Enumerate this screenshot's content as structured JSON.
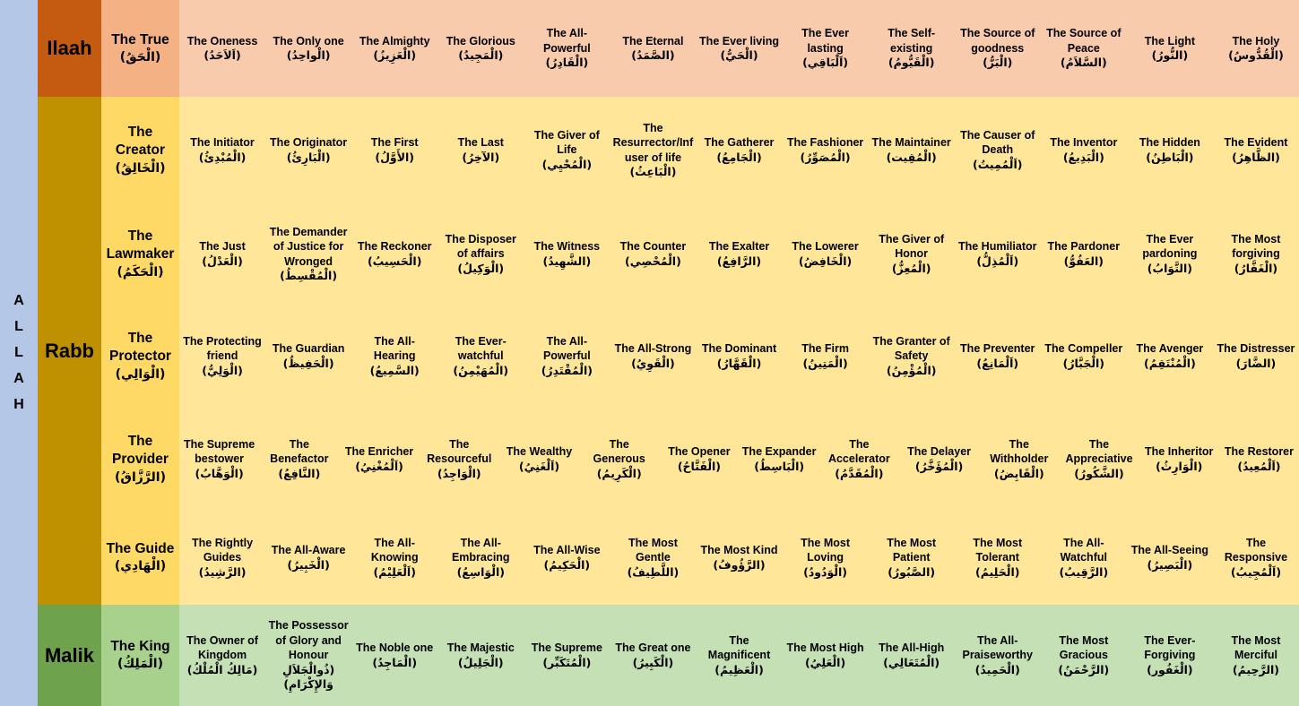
{
  "palette": {
    "allah_strip_bg": "#B4C7E7",
    "text": "#000000"
  },
  "allah_vertical_label": {
    "letters": [
      "A",
      "L",
      "L",
      "A",
      "H"
    ]
  },
  "sections": [
    {
      "category": "Ilaah",
      "colors": {
        "category_bg": "#C55A11",
        "label_bg": "#F4B183",
        "names_bg": "#F8CBAD"
      },
      "rows": [
        {
          "label": {
            "name": "The True",
            "arabic": "(الْحَقُ)"
          },
          "names": [
            {
              "name": "The Oneness",
              "arabic": "(اَلاَحَدُ)"
            },
            {
              "name": "The Only one",
              "arabic": "(الْواحِدُ)"
            },
            {
              "name": "The Almighty",
              "arabic": "(الْعَزِيزُ)"
            },
            {
              "name": "The Glorious",
              "arabic": "(الْمَجِيدُ)"
            },
            {
              "name": "The All-Powerful",
              "arabic": "(الْقَادِرُ)"
            },
            {
              "name": "The Eternal",
              "arabic": "(الصَّمَدُ)"
            },
            {
              "name": "The Ever living",
              "arabic": "(الْحَيُّ)"
            },
            {
              "name": "The Ever lasting",
              "arabic": "(اَلْبَاقِي)"
            },
            {
              "name": "The Self-existing",
              "arabic": "(الْقَيُّومُ)"
            },
            {
              "name": "The Source of goodness",
              "arabic": "(الْبَرُّ)"
            },
            {
              "name": "The Source of Peace",
              "arabic": "(السَّلاَمُ)"
            },
            {
              "name": "The Light",
              "arabic": "(النُّورُ)"
            },
            {
              "name": "The Holy",
              "arabic": "(الْقُدُّوسُ)"
            }
          ]
        }
      ]
    },
    {
      "category": "Rabb",
      "colors": {
        "category_bg": "#BF9000",
        "label_bg": "#FFD966",
        "names_bg": "#FFE699"
      },
      "rows": [
        {
          "label": {
            "name": "The Creator",
            "arabic": "(الْخَالِقُ)"
          },
          "names": [
            {
              "name": "The Initiator",
              "arabic": "(الْمُبْدِئُ)"
            },
            {
              "name": "The Originator",
              "arabic": "(الْبَارِئُ)"
            },
            {
              "name": "The First",
              "arabic": "(الأَوَّلُ)"
            },
            {
              "name": "The Last",
              "arabic": "(الآخِرُ)"
            },
            {
              "name": "The Giver of Life",
              "arabic": "(الْمُحْيِي)"
            },
            {
              "name": "The Resurrector/Infuser of life",
              "arabic": "(الْبَاعِثُ)"
            },
            {
              "name": "The Gatherer",
              "arabic": "(الْجَامِعُ)"
            },
            {
              "name": "The Fashioner",
              "arabic": "(الْمُصَوِّرُ)"
            },
            {
              "name": "The Maintainer",
              "arabic": "(الْمُقِيت)"
            },
            {
              "name": "The Causer of Death",
              "arabic": "(اَلْمُمِيتُ)"
            },
            {
              "name": "The Inventor",
              "arabic": "(الْبَدِيعُ)"
            },
            {
              "name": "The Hidden",
              "arabic": "(الْبَاطِنُ)"
            },
            {
              "name": "The Evident",
              "arabic": "(الظَّاهِرُ)"
            }
          ]
        },
        {
          "label": {
            "name": "The Lawmaker",
            "arabic": "(الْحَكَمُ)"
          },
          "names": [
            {
              "name": "The Just",
              "arabic": "(الْعَدْلُ)"
            },
            {
              "name": "The Demander of Justice for Wronged",
              "arabic": "(الْمُقْسِطُ)"
            },
            {
              "name": "The Reckoner",
              "arabic": "(الْحَسِيبُ)"
            },
            {
              "name": "The Disposer of affairs",
              "arabic": "(الْوَكِيلُ)"
            },
            {
              "name": "The Witness",
              "arabic": "(الشَّهِيدُ)"
            },
            {
              "name": "The Counter",
              "arabic": "(الْمُحْصِي)"
            },
            {
              "name": "The Exalter",
              "arabic": "(الرَّافِعُ)"
            },
            {
              "name": "The Lowerer",
              "arabic": "(الْخَافِضُ)"
            },
            {
              "name": "The Giver of Honor",
              "arabic": "(الْمُعِزُّ)"
            },
            {
              "name": "The Humiliator",
              "arabic": "(اَلْمُذِلُّ)"
            },
            {
              "name": "The Pardoner",
              "arabic": "(العَفُوُّ)"
            },
            {
              "name": "The Ever pardoning",
              "arabic": "(التَّوَابُ)"
            },
            {
              "name": "The Most forgiving",
              "arabic": "(الْغَفَّارُ)"
            }
          ]
        },
        {
          "label": {
            "name": "The Protector",
            "arabic": "(الْوَالِي)"
          },
          "names": [
            {
              "name": "The Protecting friend",
              "arabic": "(الْوَلِيُّ)"
            },
            {
              "name": "The Guardian",
              "arabic": "(الْحَفِيظُ)"
            },
            {
              "name": "The All-Hearing",
              "arabic": "(السَّمِيعُ)"
            },
            {
              "name": "The Ever-watchful",
              "arabic": "(الْمُهَيْمِنُ)"
            },
            {
              "name": "The All-Powerful",
              "arabic": "(الْمُقْتَدِرُ)"
            },
            {
              "name": "The All-Strong",
              "arabic": "(الْقَوِيُ)"
            },
            {
              "name": "The Dominant",
              "arabic": "(الْقَهَّارُ)"
            },
            {
              "name": "The Firm",
              "arabic": "(الْمَتِينُ)"
            },
            {
              "name": "The Granter of Safety",
              "arabic": "(الْمُؤْمِنُ)"
            },
            {
              "name": "The Preventer",
              "arabic": "(اَلْمَانِعُ)"
            },
            {
              "name": "The Compeller",
              "arabic": "(الْجَبَّارُ)"
            },
            {
              "name": "The Avenger",
              "arabic": "(الْمُنْتَقِمُ)"
            },
            {
              "name": "The Distresser",
              "arabic": "(الضَّارَ)"
            }
          ]
        },
        {
          "label": {
            "name": "The Provider",
            "arabic": "(الرَّزَّاقُ)"
          },
          "names": [
            {
              "name": "The Supreme bestower",
              "arabic": "(الْوَهَّابُ)"
            },
            {
              "name": "The Benefactor",
              "arabic": "(النَّافِعُ)"
            },
            {
              "name": "The Enricher",
              "arabic": "(اَلْمُغْنِيُ)"
            },
            {
              "name": "The Resourceful",
              "arabic": "(الْوَاجِدُ)"
            },
            {
              "name": "The Wealthy",
              "arabic": "(اَلْغَنِيُ)"
            },
            {
              "name": "The Generous",
              "arabic": "(الْكَرِيمُ)"
            },
            {
              "name": "The Opener",
              "arabic": "(الْفَتَّاحُ)"
            },
            {
              "name": "The Expander",
              "arabic": "(الْبَاسِطُ)"
            },
            {
              "name": "The Accelerator",
              "arabic": "(الْمُقَدَّمُ)"
            },
            {
              "name": "The Delayer",
              "arabic": "(الْمُؤَخَّرُ)"
            },
            {
              "name": "The Withholder",
              "arabic": "(الْقَابِضُ)"
            },
            {
              "name": "The Appreciative",
              "arabic": "(الشَّكُورُ)"
            },
            {
              "name": "The Inheritor",
              "arabic": "(الْوَارِثُ)"
            },
            {
              "name": "The Restorer",
              "arabic": "(اَلْمُعِيدُ)"
            }
          ]
        },
        {
          "label": {
            "name": "The Guide",
            "arabic": "(الْهَادِي)"
          },
          "names": [
            {
              "name": "The Rightly Guides",
              "arabic": "(الرَّشِيدُ)"
            },
            {
              "name": "The All-Aware",
              "arabic": "(الْخَبِيرُ)"
            },
            {
              "name": "The All-Knowing",
              "arabic": "(اَلْعَلِيْمُ)"
            },
            {
              "name": "The All-Embracing",
              "arabic": "(الْوَاسِعُ)"
            },
            {
              "name": "The All-Wise",
              "arabic": "(الْحَكِيمُ)"
            },
            {
              "name": "The Most Gentle",
              "arabic": "(اللَّطِيفُ)"
            },
            {
              "name": "The Most Kind",
              "arabic": "(الرَّؤُوفُ)"
            },
            {
              "name": "The Most Loving",
              "arabic": "(الْوَدُودُ)"
            },
            {
              "name": "The Most Patient",
              "arabic": "(الصَّبُورُ)"
            },
            {
              "name": "The Most Tolerant",
              "arabic": "(الْحَلِيمُ)"
            },
            {
              "name": "The All-Watchful",
              "arabic": "(الرَّقِيبُ)"
            },
            {
              "name": "The All-Seeing",
              "arabic": "(الْبَصِيرُ)"
            },
            {
              "name": "The Responsive",
              "arabic": "(اَلْمُجِيبُ)"
            }
          ]
        }
      ]
    },
    {
      "category": "Malik",
      "colors": {
        "category_bg": "#6EA24C",
        "label_bg": "#A9D18E",
        "names_bg": "#C5E0B4"
      },
      "rows": [
        {
          "label": {
            "name": "The King",
            "arabic": "(الْمَلِكُ)"
          },
          "names": [
            {
              "name": "The Owner of Kingdom",
              "arabic": "(مَالِكُ الْمُلْكُ)"
            },
            {
              "name": "The Possessor of Glory and Honour",
              "arabic": "(ذُوالْجَلاَلِ وَالإِكْرَامِ)"
            },
            {
              "name": "The Noble one",
              "arabic": "(الْمَاجِدُ)"
            },
            {
              "name": "The Majestic",
              "arabic": "(الْجَلِيلُ)"
            },
            {
              "name": "The Supreme",
              "arabic": "(الْمُتَكَبِّر)"
            },
            {
              "name": "The Great one",
              "arabic": "(الْكَبِيرُ)"
            },
            {
              "name": "The Magnificent",
              "arabic": "(الْعَظِيمُ)"
            },
            {
              "name": "The Most High",
              "arabic": "(الْعَلِيُ)"
            },
            {
              "name": "The All-High",
              "arabic": "(الْمُتَعَالِي)"
            },
            {
              "name": "The All-Praiseworthy",
              "arabic": "(الْحَمِيدُ)"
            },
            {
              "name": "The Most Gracious",
              "arabic": "(الرَّحْمَنُ)"
            },
            {
              "name": "The Ever-Forgiving",
              "arabic": "(الْغَفُور)"
            },
            {
              "name": "The Most Merciful",
              "arabic": "(الرَّحِيمُ)"
            }
          ]
        }
      ]
    }
  ]
}
